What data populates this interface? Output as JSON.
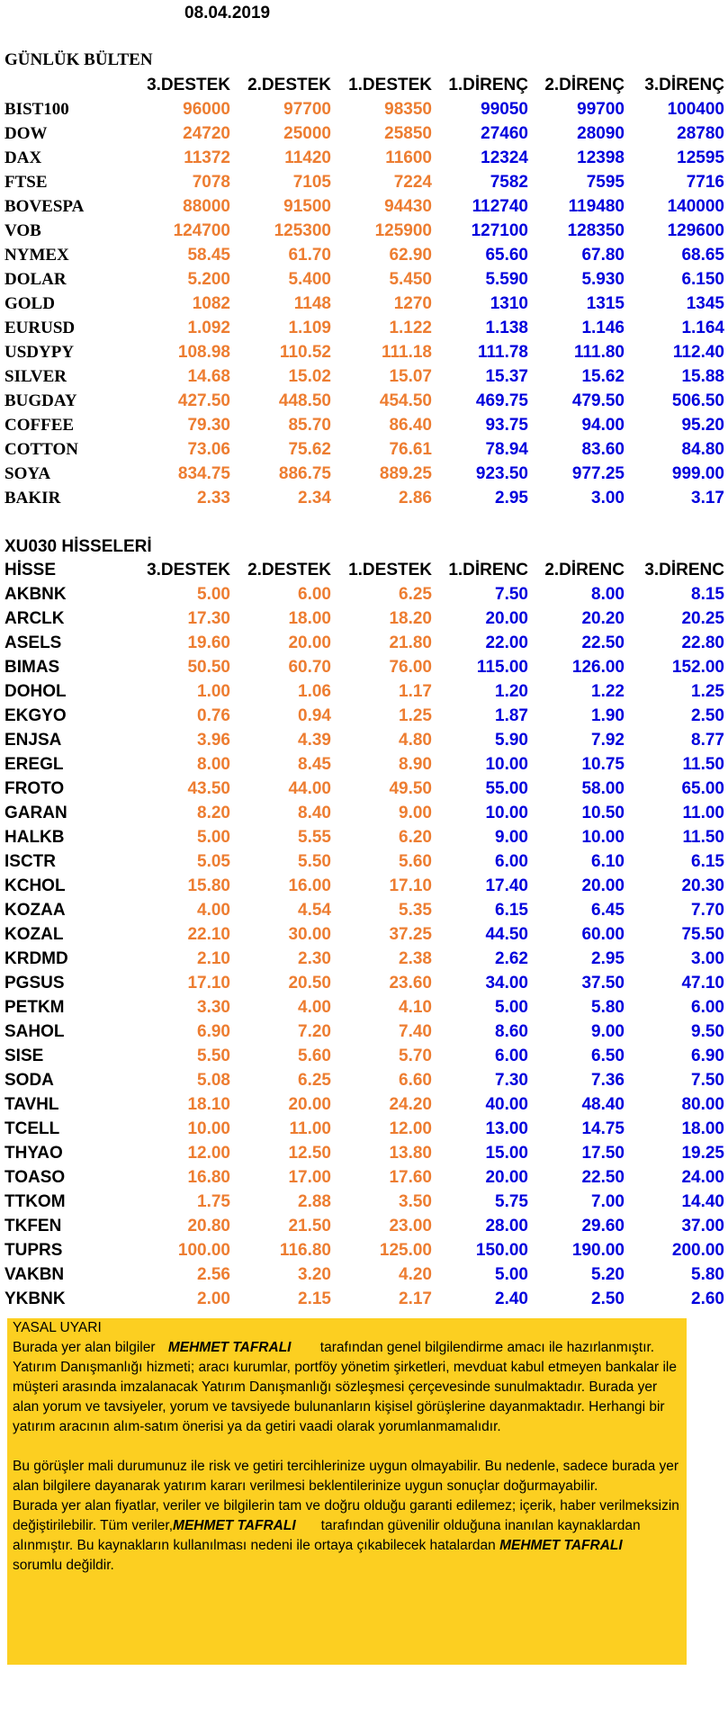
{
  "date": "08.04.2019",
  "bulletin": {
    "title": "GÜNLÜK BÜLTEN",
    "headers": [
      "3.DESTEK",
      "2.DESTEK",
      "1.DESTEK",
      "1.DİRENÇ",
      "2.DİRENÇ",
      "3.DİRENÇ"
    ],
    "rows": [
      {
        "name": "BIST100",
        "v": [
          "96000",
          "97700",
          "98350",
          "99050",
          "99700",
          "100400"
        ]
      },
      {
        "name": "DOW",
        "v": [
          "24720",
          "25000",
          "25850",
          "27460",
          "28090",
          "28780"
        ]
      },
      {
        "name": "DAX",
        "v": [
          "11372",
          "11420",
          "11600",
          "12324",
          "12398",
          "12595"
        ]
      },
      {
        "name": "FTSE",
        "v": [
          "7078",
          "7105",
          "7224",
          "7582",
          "7595",
          "7716"
        ]
      },
      {
        "name": "BOVESPA",
        "v": [
          "88000",
          "91500",
          "94430",
          "112740",
          "119480",
          "140000"
        ]
      },
      {
        "name": "VOB",
        "v": [
          "124700",
          "125300",
          "125900",
          "127100",
          "128350",
          "129600"
        ]
      },
      {
        "name": "NYMEX",
        "v": [
          "58.45",
          "61.70",
          "62.90",
          "65.60",
          "67.80",
          "68.65"
        ]
      },
      {
        "name": "DOLAR",
        "v": [
          "5.200",
          "5.400",
          "5.450",
          "5.590",
          "5.930",
          "6.150"
        ]
      },
      {
        "name": "GOLD",
        "v": [
          "1082",
          "1148",
          "1270",
          "1310",
          "1315",
          "1345"
        ]
      },
      {
        "name": "EURUSD",
        "v": [
          "1.092",
          "1.109",
          "1.122",
          "1.138",
          "1.146",
          "1.164"
        ]
      },
      {
        "name": "USDYPY",
        "v": [
          "108.98",
          "110.52",
          "111.18",
          "111.78",
          "111.80",
          "112.40"
        ]
      },
      {
        "name": "SILVER",
        "v": [
          "14.68",
          "15.02",
          "15.07",
          "15.37",
          "15.62",
          "15.88"
        ]
      },
      {
        "name": "BUGDAY",
        "v": [
          "427.50",
          "448.50",
          "454.50",
          "469.75",
          "479.50",
          "506.50"
        ]
      },
      {
        "name": "COFFEE",
        "v": [
          "79.30",
          "85.70",
          "86.40",
          "93.75",
          "94.00",
          "95.20"
        ]
      },
      {
        "name": "COTTON",
        "v": [
          "73.06",
          "75.62",
          "76.61",
          "78.94",
          "83.60",
          "84.80"
        ]
      },
      {
        "name": "SOYA",
        "v": [
          "834.75",
          "886.75",
          "889.25",
          "923.50",
          "977.25",
          "999.00"
        ]
      },
      {
        "name": "BAKIR",
        "v": [
          "2.33",
          "2.34",
          "2.86",
          "2.95",
          "3.00",
          "3.17"
        ]
      }
    ]
  },
  "stocks": {
    "title": "XU030 HİSSELERİ",
    "label_header": "HİSSE",
    "headers": [
      "3.DESTEK",
      "2.DESTEK",
      "1.DESTEK",
      "1.DİRENC",
      "2.DİRENC",
      "3.DİRENC"
    ],
    "rows": [
      {
        "name": "AKBNK",
        "v": [
          "5.00",
          "6.00",
          "6.25",
          "7.50",
          "8.00",
          "8.15"
        ]
      },
      {
        "name": "ARCLK",
        "v": [
          "17.30",
          "18.00",
          "18.20",
          "20.00",
          "20.20",
          "20.25"
        ]
      },
      {
        "name": "ASELS",
        "v": [
          "19.60",
          "20.00",
          "21.80",
          "22.00",
          "22.50",
          "22.80"
        ]
      },
      {
        "name": "BIMAS",
        "v": [
          "50.50",
          "60.70",
          "76.00",
          "115.00",
          "126.00",
          "152.00"
        ]
      },
      {
        "name": "DOHOL",
        "v": [
          "1.00",
          "1.06",
          "1.17",
          "1.20",
          "1.22",
          "1.25"
        ]
      },
      {
        "name": "EKGYO",
        "v": [
          "0.76",
          "0.94",
          "1.25",
          "1.87",
          "1.90",
          "2.50"
        ]
      },
      {
        "name": "ENJSA",
        "v": [
          "3.96",
          "4.39",
          "4.80",
          "5.90",
          "7.92",
          "8.77"
        ]
      },
      {
        "name": "EREGL",
        "v": [
          "8.00",
          "8.45",
          "8.90",
          "10.00",
          "10.75",
          "11.50"
        ]
      },
      {
        "name": "FROTO",
        "v": [
          "43.50",
          "44.00",
          "49.50",
          "55.00",
          "58.00",
          "65.00"
        ]
      },
      {
        "name": "GARAN",
        "v": [
          "8.20",
          "8.40",
          "9.00",
          "10.00",
          "10.50",
          "11.00"
        ]
      },
      {
        "name": "HALKB",
        "v": [
          "5.00",
          "5.55",
          "6.20",
          "9.00",
          "10.00",
          "11.50"
        ]
      },
      {
        "name": "ISCTR",
        "v": [
          "5.05",
          "5.50",
          "5.60",
          "6.00",
          "6.10",
          "6.15"
        ]
      },
      {
        "name": "KCHOL",
        "v": [
          "15.80",
          "16.00",
          "17.10",
          "17.40",
          "20.00",
          "20.30"
        ]
      },
      {
        "name": "KOZAA",
        "v": [
          "4.00",
          "4.54",
          "5.35",
          "6.15",
          "6.45",
          "7.70"
        ]
      },
      {
        "name": "KOZAL",
        "v": [
          "22.10",
          "30.00",
          "37.25",
          "44.50",
          "60.00",
          "75.50"
        ]
      },
      {
        "name": "KRDMD",
        "v": [
          "2.10",
          "2.30",
          "2.38",
          "2.62",
          "2.95",
          "3.00"
        ]
      },
      {
        "name": "PGSUS",
        "v": [
          "17.10",
          "20.50",
          "23.60",
          "34.00",
          "37.50",
          "47.10"
        ]
      },
      {
        "name": "PETKM",
        "v": [
          "3.30",
          "4.00",
          "4.10",
          "5.00",
          "5.80",
          "6.00"
        ]
      },
      {
        "name": "SAHOL",
        "v": [
          "6.90",
          "7.20",
          "7.40",
          "8.60",
          "9.00",
          "9.50"
        ]
      },
      {
        "name": "SISE",
        "v": [
          "5.50",
          "5.60",
          "5.70",
          "6.00",
          "6.50",
          "6.90"
        ]
      },
      {
        "name": "SODA",
        "v": [
          "5.08",
          "6.25",
          "6.60",
          "7.30",
          "7.36",
          "7.50"
        ]
      },
      {
        "name": "TAVHL",
        "v": [
          "18.10",
          "20.00",
          "24.20",
          "40.00",
          "48.40",
          "80.00"
        ]
      },
      {
        "name": "TCELL",
        "v": [
          "10.00",
          "11.00",
          "12.00",
          "13.00",
          "14.75",
          "18.00"
        ]
      },
      {
        "name": "THYAO",
        "v": [
          "12.00",
          "12.50",
          "13.80",
          "15.00",
          "17.50",
          "19.25"
        ]
      },
      {
        "name": "TOASO",
        "v": [
          "16.80",
          "17.00",
          "17.60",
          "20.00",
          "22.50",
          "24.00"
        ]
      },
      {
        "name": "TTKOM",
        "v": [
          "1.75",
          "2.88",
          "3.50",
          "5.75",
          "7.00",
          "14.40"
        ]
      },
      {
        "name": "TKFEN",
        "v": [
          "20.80",
          "21.50",
          "23.00",
          "28.00",
          "29.60",
          "37.00"
        ]
      },
      {
        "name": "TUPRS",
        "v": [
          "100.00",
          "116.80",
          "125.00",
          "150.00",
          "190.00",
          "200.00"
        ]
      },
      {
        "name": "VAKBN",
        "v": [
          "2.56",
          "3.20",
          "4.20",
          "5.00",
          "5.20",
          "5.80"
        ]
      },
      {
        "name": "YKBNK",
        "v": [
          "2.00",
          "2.15",
          "2.17",
          "2.40",
          "2.50",
          "2.60"
        ]
      }
    ]
  },
  "disclaimer": {
    "title": "YASAL UYARI",
    "author": "MEHMET TAFRALI",
    "p1_start": "Burada yer alan bilgiler",
    "p1_after_name": "tarafından genel bilgilendirme amacı ile",
    "p1_rest": "hazırlanmıştır. Yatırım Danışmanlığı hizmeti; aracı kurumlar, portföy yönetim şirketleri, mevduat kabul etmeyen bankalar ile müşteri arasında imzalanacak Yatırım Danışmanlığı sözleşmesi çerçevesinde sunulmaktadır. Burada yer alan yorum ve tavsiyeler, yorum ve tavsiyede bulunanların kişisel görüşlerine dayanmaktadır. Herhangi bir yatırım aracının alım-satım önerisi ya da getiri vaadi olarak yorumlanmamalıdır.",
    "p2": "Bu görüşler mali durumunuz ile risk ve getiri tercihlerinize uygun olmayabilir. Bu nedenle, sadece burada yer alan bilgilere dayanarak yatırım kararı verilmesi beklentilerinize uygun sonuçlar doğurmayabilir.",
    "p3_start": "Burada yer alan fiyatlar, veriler ve bilgilerin tam ve doğru olduğu garanti edilemez; içerik, haber verilmeksizin değiştirilebilir. Tüm veriler,",
    "p3_after_name": "tarafından güvenilir olduğuna inanılan kaynaklardan alınmıştır. Bu kaynakların kullanılması nedeni ile ortaya çıkabilecek hatalardan",
    "p3_end": "sorumlu değildir."
  },
  "colors": {
    "support": "#ed7d31",
    "resistance": "#0000dd",
    "disclaimer_bg": "#fccf21"
  }
}
